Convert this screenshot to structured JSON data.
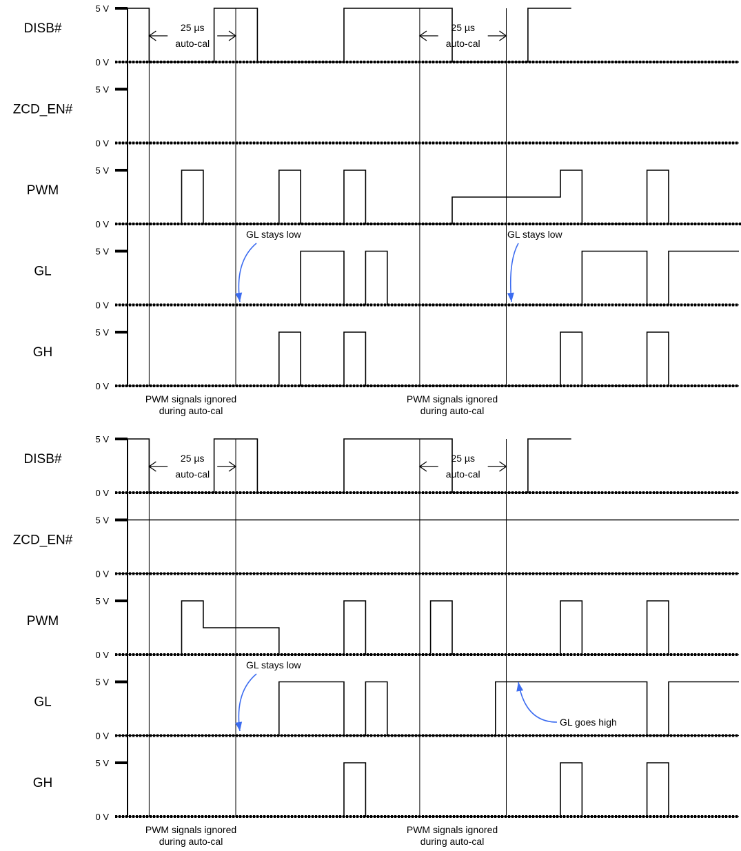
{
  "panels": [
    {
      "signals": [
        {
          "name": "DISB#",
          "high_label": "5 V",
          "low_label": "0 V",
          "trace": [
            [
              0,
              1
            ],
            [
              2,
              1
            ],
            [
              2,
              0
            ],
            [
              8,
              0
            ],
            [
              8,
              1
            ],
            [
              12,
              1
            ],
            [
              12,
              0
            ],
            [
              20,
              0
            ],
            [
              20,
              1
            ],
            [
              30,
              1
            ],
            [
              30,
              0
            ],
            [
              37,
              0
            ],
            [
              37,
              1
            ],
            [
              41,
              1
            ]
          ]
        },
        {
          "name": "ZCD_EN#",
          "high_label": "5 V",
          "low_label": "0 V",
          "trace": []
        },
        {
          "name": "PWM",
          "high_label": "5 V",
          "low_label": "0 V",
          "trace": [
            [
              5,
              0
            ],
            [
              5,
              1
            ],
            [
              7,
              1
            ],
            [
              7,
              0
            ],
            [
              14,
              0
            ],
            [
              14,
              1
            ],
            [
              16,
              1
            ],
            [
              16,
              0
            ],
            [
              20,
              0
            ],
            [
              20,
              1
            ],
            [
              22,
              1
            ],
            [
              22,
              0
            ],
            [
              30,
              0
            ],
            [
              30,
              0.5
            ],
            [
              40,
              0.5
            ],
            [
              40,
              1
            ],
            [
              42,
              1
            ],
            [
              42,
              0
            ],
            [
              48,
              0
            ],
            [
              48,
              1
            ],
            [
              50,
              1
            ],
            [
              50,
              0
            ]
          ]
        },
        {
          "name": "GL",
          "high_label": "5 V",
          "low_label": "0 V",
          "trace": [
            [
              16,
              0
            ],
            [
              16,
              1
            ],
            [
              20,
              1
            ],
            [
              20,
              0
            ],
            [
              22,
              0
            ],
            [
              22,
              1
            ],
            [
              24,
              1
            ],
            [
              24,
              0
            ],
            [
              42,
              0
            ],
            [
              42,
              1
            ],
            [
              48,
              1
            ],
            [
              48,
              0
            ],
            [
              50,
              0
            ],
            [
              50,
              1
            ],
            [
              57,
              1
            ]
          ]
        },
        {
          "name": "GH",
          "high_label": "5 V",
          "low_label": "0 V",
          "trace": [
            [
              14,
              0
            ],
            [
              14,
              1
            ],
            [
              16,
              1
            ],
            [
              16,
              0
            ],
            [
              20,
              0
            ],
            [
              20,
              1
            ],
            [
              22,
              1
            ],
            [
              22,
              0
            ],
            [
              40,
              0
            ],
            [
              40,
              1
            ],
            [
              42,
              1
            ],
            [
              42,
              0
            ],
            [
              48,
              0
            ],
            [
              48,
              1
            ],
            [
              50,
              1
            ],
            [
              50,
              0
            ]
          ]
        }
      ],
      "autocal": [
        {
          "value": "25 µs",
          "label": "auto-cal"
        },
        {
          "value": "25 µs",
          "label": "auto-cal"
        }
      ],
      "ignored": [
        {
          "line1": "PWM signals ignored",
          "line2": "during auto-cal"
        },
        {
          "line1": "PWM signals ignored",
          "line2": "during auto-cal"
        }
      ],
      "annotations": [
        "GL stays low",
        "GL stays low"
      ]
    },
    {
      "signals": [
        {
          "name": "DISB#",
          "high_label": "5 V",
          "low_label": "0 V",
          "trace": [
            [
              0,
              1
            ],
            [
              2,
              1
            ],
            [
              2,
              0
            ],
            [
              8,
              0
            ],
            [
              8,
              1
            ],
            [
              12,
              1
            ],
            [
              12,
              0
            ],
            [
              20,
              0
            ],
            [
              20,
              1
            ],
            [
              30,
              1
            ],
            [
              30,
              0
            ],
            [
              37,
              0
            ],
            [
              37,
              1
            ],
            [
              41,
              1
            ]
          ]
        },
        {
          "name": "ZCD_EN#",
          "high_label": "5 V",
          "low_label": "0 V",
          "trace": [
            [
              0,
              1
            ],
            [
              57,
              1
            ]
          ]
        },
        {
          "name": "PWM",
          "high_label": "5 V",
          "low_label": "0 V",
          "trace": [
            [
              5,
              0
            ],
            [
              5,
              1
            ],
            [
              7,
              1
            ],
            [
              7,
              0.5
            ],
            [
              14,
              0.5
            ],
            [
              14,
              0
            ],
            [
              20,
              0
            ],
            [
              20,
              1
            ],
            [
              22,
              1
            ],
            [
              22,
              0
            ],
            [
              28,
              0
            ],
            [
              28,
              1
            ],
            [
              30,
              1
            ],
            [
              30,
              0
            ],
            [
              40,
              0
            ],
            [
              40,
              1
            ],
            [
              42,
              1
            ],
            [
              42,
              0
            ],
            [
              48,
              0
            ],
            [
              48,
              1
            ],
            [
              50,
              1
            ],
            [
              50,
              0
            ]
          ]
        },
        {
          "name": "GL",
          "high_label": "5 V",
          "low_label": "0 V",
          "trace": [
            [
              14,
              0
            ],
            [
              14,
              1
            ],
            [
              20,
              1
            ],
            [
              20,
              0
            ],
            [
              22,
              0
            ],
            [
              22,
              1
            ],
            [
              24,
              1
            ],
            [
              24,
              0
            ],
            [
              34,
              0
            ],
            [
              34,
              1
            ],
            [
              48,
              1
            ],
            [
              48,
              0
            ],
            [
              50,
              0
            ],
            [
              50,
              1
            ],
            [
              57,
              1
            ]
          ]
        },
        {
          "name": "GH",
          "high_label": "5 V",
          "low_label": "0 V",
          "trace": [
            [
              20,
              0
            ],
            [
              20,
              1
            ],
            [
              22,
              1
            ],
            [
              22,
              0
            ],
            [
              40,
              0
            ],
            [
              40,
              1
            ],
            [
              42,
              1
            ],
            [
              42,
              0
            ],
            [
              48,
              0
            ],
            [
              48,
              1
            ],
            [
              50,
              1
            ],
            [
              50,
              0
            ]
          ]
        }
      ],
      "autocal": [
        {
          "value": "25 µs",
          "label": "auto-cal"
        },
        {
          "value": "25 µs",
          "label": "auto-cal"
        }
      ],
      "ignored": [
        {
          "line1": "PWM signals ignored",
          "line2": "during auto-cal"
        },
        {
          "line1": "PWM signals ignored",
          "line2": "during auto-cal"
        }
      ],
      "annotations": [
        "GL stays low",
        "GL goes high"
      ]
    }
  ],
  "colors": {
    "trace": "#000000",
    "annotation_arrow": "#3c6cf0",
    "text": "#000000"
  }
}
